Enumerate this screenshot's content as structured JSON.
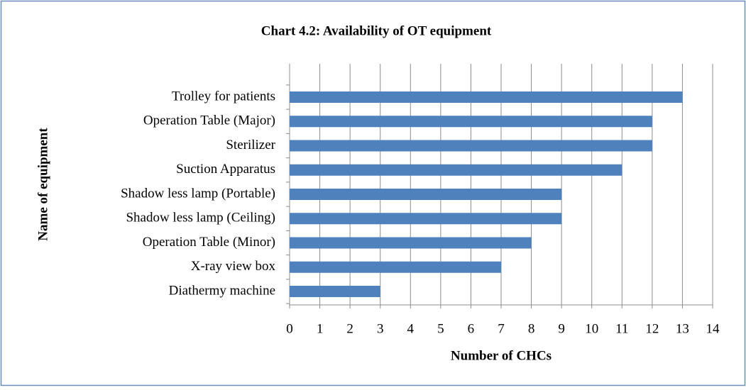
{
  "chart_data": {
    "type": "bar",
    "orientation": "horizontal",
    "title": "Chart 4.2: Availability of OT equipment",
    "x_label": "Number of CHCs",
    "y_label": "Name of equipment",
    "categories": [
      "Trolley for patients",
      "Operation Table (Major)",
      "Sterilizer",
      "Suction Apparatus",
      "Shadow less lamp (Portable)",
      "Shadow less lamp (Ceiling)",
      "Operation Table (Minor)",
      "X-ray view box",
      "Diathermy machine"
    ],
    "values": [
      13,
      12,
      12,
      11,
      9,
      9,
      8,
      7,
      3
    ],
    "color": "#4f81bd",
    "xlim": [
      0,
      14
    ],
    "xticks": [
      0,
      1,
      2,
      3,
      4,
      5,
      6,
      7,
      8,
      9,
      10,
      11,
      12,
      13,
      14
    ],
    "grid": true
  }
}
